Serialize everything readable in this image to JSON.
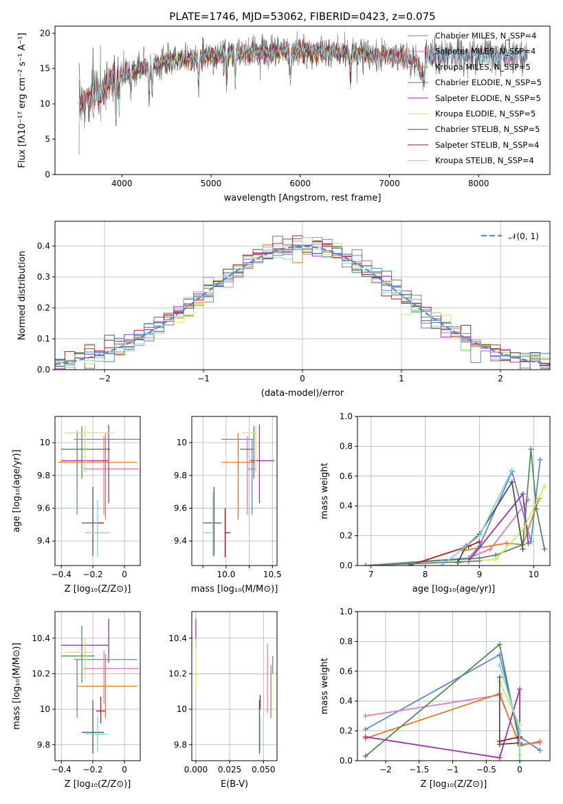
{
  "figure": {
    "title": "PLATE=1746, MJD=53062, FIBERID=0423, z=0.075"
  },
  "colors": {
    "chabrier_miles": "#7f7f7f",
    "salpeter_miles": "#e377c2",
    "kroupa_miles": "#e6791e",
    "chabrier_elodie": "#4f8a5a",
    "salpeter_elodie": "#9b30b0",
    "kroupa_elodie": "#cfe85a",
    "chabrier_stelib": "#505050",
    "salpeter_stelib": "#b0171f",
    "kroupa_stelib": "#7fd4e0",
    "blue": "#5b86d6",
    "gauss": "#5b86d6"
  },
  "chart_data": [
    {
      "id": "spectrum",
      "type": "line",
      "xlabel": "wavelength [Angstrom, rest frame]",
      "ylabel": "Flux [fλ10⁻¹⁷ erg cm⁻² s⁻¹ A⁻¹]",
      "xlim": [
        3250,
        8800
      ],
      "ylim": [
        0,
        21
      ],
      "xticks": [
        4000,
        5000,
        6000,
        7000,
        8000
      ],
      "yticks": [
        0,
        5,
        10,
        15,
        20
      ],
      "legend_position": "top-right",
      "continuum": [
        [
          3520,
          10
        ],
        [
          3700,
          11
        ],
        [
          3900,
          13.5
        ],
        [
          4100,
          14.5
        ],
        [
          4300,
          15.5
        ],
        [
          4600,
          16.3
        ],
        [
          5000,
          16.8
        ],
        [
          5500,
          17.3
        ],
        [
          6000,
          17.5
        ],
        [
          6500,
          17.2
        ],
        [
          7000,
          16.8
        ],
        [
          7300,
          16.3
        ],
        [
          7400,
          13
        ]
      ],
      "series": [
        {
          "name": "Chabrier MILES, N_SSP=4",
          "color_key": "chabrier_miles",
          "x_range": [
            3520,
            8550
          ]
        },
        {
          "name": "Salpeter MILES, N_SSP=4",
          "color_key": "salpeter_miles",
          "x_range": [
            3520,
            8550
          ]
        },
        {
          "name": "Kroupa MILES, N_SSP=5",
          "color_key": "kroupa_miles",
          "x_range": [
            3520,
            7410
          ]
        },
        {
          "name": "Chabrier ELODIE, N_SSP=5",
          "color_key": "chabrier_elodie",
          "x_range": [
            3900,
            6800
          ]
        },
        {
          "name": "Salpeter ELODIE, N_SSP=5",
          "color_key": "salpeter_elodie",
          "x_range": [
            3900,
            6800
          ]
        },
        {
          "name": "Kroupa ELODIE, N_SSP=5",
          "color_key": "kroupa_elodie",
          "x_range": [
            3900,
            6800
          ]
        },
        {
          "name": "Chabrier STELIB, N_SSP=5",
          "color_key": "chabrier_stelib",
          "x_range": [
            3520,
            8550
          ]
        },
        {
          "name": "Salpeter STELIB, N_SSP=4",
          "color_key": "salpeter_stelib",
          "x_range": [
            3520,
            7410
          ]
        },
        {
          "name": "Kroupa STELIB, N_SSP=4",
          "color_key": "kroupa_stelib",
          "x_range": [
            3520,
            8550
          ]
        }
      ]
    },
    {
      "id": "residuals",
      "type": "histogram",
      "xlabel": "(data-model)/error",
      "ylabel": "Normed distribution",
      "xlim": [
        -2.5,
        2.5
      ],
      "ylim": [
        0,
        0.48
      ],
      "xticks": [
        -2,
        -1,
        0,
        1,
        2
      ],
      "yticks": [
        0.0,
        0.1,
        0.2,
        0.3,
        0.4
      ],
      "grid": true,
      "legend_position": "top-right",
      "gauss_label": "𝒩(0, 1)",
      "bin_width": 0.1
    },
    {
      "id": "age_vs_Z",
      "type": "errorbar",
      "xlabel": "Z [log₁₀(Z/Z⊙)]",
      "ylabel": "age  [log₁₀(age/yr)]",
      "xlim": [
        -0.44,
        0.1
      ],
      "ylim": [
        9.25,
        10.16
      ],
      "xticks": [
        -0.4,
        -0.2,
        0.0
      ],
      "yticks": [
        9.4,
        9.6,
        9.8,
        10.0
      ],
      "grid": true,
      "points": [
        {
          "series": "chabrier_miles",
          "x": -0.3,
          "y": 10.02,
          "xerr": [
            0.0,
            0.0
          ],
          "yerr": [
            0.3,
            0.05
          ]
        },
        {
          "series": "blue",
          "x": -0.3,
          "y": 10.02,
          "xerr": [
            0.02,
            0.4
          ],
          "yerr": [
            0.46,
            0.0
          ]
        },
        {
          "series": "salpeter_miles",
          "x": -0.13,
          "y": 9.84,
          "xerr": [
            0.13,
            0.22
          ],
          "yerr": [
            0.28,
            0.2
          ]
        },
        {
          "series": "kroupa_miles",
          "x": -0.12,
          "y": 9.88,
          "xerr": [
            0.3,
            0.2
          ],
          "yerr": [
            0.35,
            0.18
          ]
        },
        {
          "series": "chabrier_elodie",
          "x": -0.27,
          "y": 9.96,
          "xerr": [
            0.13,
            0.18
          ],
          "yerr": [
            0.18,
            0.14
          ]
        },
        {
          "series": "salpeter_elodie",
          "x": -0.1,
          "y": 9.89,
          "xerr": [
            0.3,
            0.0
          ],
          "yerr": [
            0.26,
            0.22
          ]
        },
        {
          "series": "kroupa_elodie",
          "x": -0.25,
          "y": 10.06,
          "xerr": [
            0.13,
            0.18
          ],
          "yerr": [
            0.24,
            0.04
          ]
        },
        {
          "series": "chabrier_stelib",
          "x": -0.2,
          "y": 9.51,
          "xerr": [
            0.07,
            0.07
          ],
          "yerr": [
            0.2,
            0.22
          ]
        },
        {
          "series": "salpeter_stelib",
          "x": -0.15,
          "y": 9.51,
          "xerr": [
            0.0,
            0.0
          ],
          "yerr": [
            0.0,
            0.0
          ]
        },
        {
          "series": "kroupa_stelib",
          "x": -0.17,
          "y": 9.45,
          "xerr": [
            0.08,
            0.08
          ],
          "yerr": [
            0.15,
            0.2
          ]
        }
      ]
    },
    {
      "id": "age_vs_mass",
      "type": "errorbar",
      "xlabel": "mass [log₁₀(M/M⊙)]",
      "ylabel": "",
      "xlim": [
        9.63,
        10.55
      ],
      "ylim": [
        9.25,
        10.16
      ],
      "xticks": [
        9.75,
        10.0,
        10.25,
        10.5
      ],
      "xticklabels": [
        "",
        "10.0",
        "",
        "10.5"
      ],
      "yticks": [
        9.4,
        9.6,
        9.8,
        10.0
      ],
      "grid": true,
      "points": [
        {
          "series": "blue",
          "x": 10.28,
          "y": 10.02,
          "xerr": [
            0.33,
            0.02
          ],
          "yerr": [
            0.46,
            0.0
          ]
        },
        {
          "series": "salpeter_miles",
          "x": 10.23,
          "y": 9.84,
          "xerr": [
            0.0,
            0.1
          ],
          "yerr": [
            0.28,
            0.2
          ]
        },
        {
          "series": "kroupa_miles",
          "x": 10.13,
          "y": 9.88,
          "xerr": [
            0.18,
            0.18
          ],
          "yerr": [
            0.35,
            0.18
          ]
        },
        {
          "series": "chabrier_elodie",
          "x": 10.3,
          "y": 9.96,
          "xerr": [
            0.15,
            0.0
          ],
          "yerr": [
            0.18,
            0.14
          ]
        },
        {
          "series": "salpeter_elodie",
          "x": 10.36,
          "y": 9.89,
          "xerr": [
            0.1,
            0.16
          ],
          "yerr": [
            0.26,
            0.22
          ]
        },
        {
          "series": "kroupa_elodie",
          "x": 10.32,
          "y": 10.06,
          "xerr": [
            0.15,
            0.0
          ],
          "yerr": [
            0.24,
            0.04
          ]
        },
        {
          "series": "chabrier_stelib",
          "x": 9.87,
          "y": 9.51,
          "xerr": [
            0.12,
            0.08
          ],
          "yerr": [
            0.2,
            0.22
          ]
        },
        {
          "series": "salpeter_stelib",
          "x": 9.99,
          "y": 9.45,
          "xerr": [
            0.0,
            0.06
          ],
          "yerr": [
            0.15,
            0.15
          ]
        },
        {
          "series": "kroupa_stelib",
          "x": 9.86,
          "y": 9.45,
          "xerr": [
            0.1,
            0.0
          ],
          "yerr": [
            0.15,
            0.25
          ]
        }
      ]
    },
    {
      "id": "mw_vs_age",
      "type": "line",
      "xlabel": "age  [log₁₀(age/yr)]",
      "ylabel": "mass weight",
      "xlim": [
        6.75,
        10.3
      ],
      "ylim": [
        0,
        1.0
      ],
      "xticks": [
        7,
        8,
        9,
        10
      ],
      "yticks": [
        0.0,
        0.2,
        0.4,
        0.6,
        0.8,
        1.0
      ],
      "grid": true,
      "series": [
        {
          "color_key": "blue",
          "x": [
            6.9,
            8.8,
            9.0,
            9.6,
            9.95,
            10.12
          ],
          "y": [
            0.0,
            0.05,
            0.13,
            0.63,
            0.16,
            0.71
          ]
        },
        {
          "color_key": "salpeter_miles",
          "x": [
            8.8,
            9.2,
            9.9
          ],
          "y": [
            0.05,
            0.11,
            0.44
          ]
        },
        {
          "color_key": "kroupa_miles",
          "x": [
            8.7,
            9.5,
            9.8,
            10.1
          ],
          "y": [
            0.1,
            0.15,
            0.14,
            0.45
          ]
        },
        {
          "color_key": "chabrier_elodie",
          "x": [
            6.9,
            9.0,
            9.3,
            9.8,
            9.95,
            10.05,
            10.2
          ],
          "y": [
            0.0,
            0.05,
            0.07,
            0.14,
            0.78,
            0.38,
            0.11
          ]
        },
        {
          "color_key": "salpeter_elodie",
          "x": [
            8.6,
            8.8,
            9.8,
            9.9
          ],
          "y": [
            0.02,
            0.03,
            0.48,
            0.15
          ]
        },
        {
          "color_key": "kroupa_elodie",
          "x": [
            8.3,
            9.3,
            9.8,
            10.2
          ],
          "y": [
            0.02,
            0.04,
            0.24,
            0.53
          ]
        },
        {
          "color_key": "chabrier_stelib",
          "x": [
            8.6,
            8.75,
            9.0,
            9.6,
            9.8
          ],
          "y": [
            0.02,
            0.13,
            0.21,
            0.56,
            0.11
          ]
        },
        {
          "color_key": "salpeter_stelib",
          "x": [
            7.7,
            8.8,
            9.0
          ],
          "y": [
            0.0,
            0.13,
            0.16
          ]
        },
        {
          "color_key": "kroupa_stelib",
          "x": [
            8.3,
            9.0,
            9.6
          ],
          "y": [
            0.0,
            0.2,
            0.64
          ]
        },
        {
          "color_key": "chabrier_miles",
          "x": [
            6.9,
            9.0
          ],
          "y": [
            0.0,
            0.03
          ]
        }
      ]
    },
    {
      "id": "mass_vs_Z",
      "type": "errorbar",
      "xlabel": "Z [log₁₀(Z/Z⊙)]",
      "ylabel": "mass [log₁₀(M/M⊙)]",
      "xlim": [
        -0.44,
        0.1
      ],
      "ylim": [
        9.71,
        10.55
      ],
      "xticks": [
        -0.4,
        -0.2,
        0.0
      ],
      "yticks": [
        9.8,
        10.0,
        10.2,
        10.4
      ],
      "grid": true,
      "points": [
        {
          "series": "blue",
          "x": -0.3,
          "y": 10.28,
          "xerr": [
            0.02,
            0.38
          ],
          "yerr": [
            0.33,
            0.0
          ]
        },
        {
          "series": "salpeter_miles",
          "x": -0.13,
          "y": 10.23,
          "xerr": [
            0.13,
            0.22
          ],
          "yerr": [
            0.2,
            0.1
          ]
        },
        {
          "series": "kroupa_miles",
          "x": -0.12,
          "y": 10.13,
          "xerr": [
            0.18,
            0.2
          ],
          "yerr": [
            0.18,
            0.18
          ]
        },
        {
          "series": "chabrier_elodie",
          "x": -0.27,
          "y": 10.3,
          "xerr": [
            0.13,
            0.08
          ],
          "yerr": [
            0.15,
            0.17
          ]
        },
        {
          "series": "salpeter_elodie",
          "x": -0.1,
          "y": 10.36,
          "xerr": [
            0.3,
            0.0
          ],
          "yerr": [
            0.1,
            0.15
          ]
        },
        {
          "series": "kroupa_elodie",
          "x": -0.25,
          "y": 10.32,
          "xerr": [
            0.13,
            0.05
          ],
          "yerr": [
            0.15,
            0.08
          ]
        },
        {
          "series": "chabrier_stelib",
          "x": -0.2,
          "y": 9.87,
          "xerr": [
            0.07,
            0.07
          ],
          "yerr": [
            0.12,
            0.18
          ]
        },
        {
          "series": "salpeter_stelib",
          "x": -0.15,
          "y": 9.99,
          "xerr": [
            0.03,
            0.03
          ],
          "yerr": [
            0.07,
            0.08
          ]
        },
        {
          "series": "kroupa_stelib",
          "x": -0.17,
          "y": 9.86,
          "xerr": [
            0.08,
            0.06
          ],
          "yerr": [
            0.1,
            0.1
          ]
        }
      ]
    },
    {
      "id": "mass_vs_ebv",
      "type": "errorbar",
      "xlabel": "E(B-V)",
      "ylabel": "",
      "xlim": [
        -0.003,
        0.06
      ],
      "ylim": [
        9.71,
        10.55
      ],
      "xticks": [
        0.0,
        0.025,
        0.05
      ],
      "xticklabels": [
        "0.000",
        "0.025",
        "0.050"
      ],
      "yticks": [
        9.8,
        10.0,
        10.2,
        10.4
      ],
      "grid": true,
      "points": [
        {
          "series": "salpeter_elodie",
          "x": 0.0,
          "y": 10.4,
          "xerr": [
            0,
            0
          ],
          "yerr": [
            0.05,
            0.11
          ]
        },
        {
          "series": "kroupa_elodie",
          "x": 0.0,
          "y": 10.25,
          "xerr": [
            0,
            0
          ],
          "yerr": [
            0.15,
            0.15
          ]
        },
        {
          "series": "salpeter_miles",
          "x": 0.053,
          "y": 10.2,
          "xerr": [
            0,
            0
          ],
          "yerr": [
            0.22,
            0.17
          ]
        },
        {
          "series": "kroupa_miles",
          "x": 0.0555,
          "y": 10.13,
          "xerr": [
            0,
            0
          ],
          "yerr": [
            0.18,
            0.12
          ]
        },
        {
          "series": "blue",
          "x": 0.0568,
          "y": 10.2,
          "xerr": [
            0,
            0
          ],
          "yerr": [
            0.0,
            0.1
          ]
        },
        {
          "series": "salpeter_stelib",
          "x": 0.0475,
          "y": 10.0,
          "xerr": [
            0,
            0
          ],
          "yerr": [
            0.0,
            0.08
          ]
        },
        {
          "series": "chabrier_stelib",
          "x": 0.047,
          "y": 9.87,
          "xerr": [
            0,
            0
          ],
          "yerr": [
            0.12,
            0.18
          ]
        },
        {
          "series": "kroupa_stelib",
          "x": 0.0475,
          "y": 9.86,
          "xerr": [
            0,
            0
          ],
          "yerr": [
            0.1,
            0.1
          ]
        }
      ]
    },
    {
      "id": "mw_vs_Z",
      "type": "line",
      "xlabel": "Z [log₁₀(Z/Z⊙)]",
      "ylabel": "mass weight",
      "xlim": [
        -2.42,
        0.45
      ],
      "ylim": [
        0,
        1.0
      ],
      "xticks": [
        -2.0,
        -1.5,
        -1.0,
        -0.5,
        0.0
      ],
      "yticks": [
        0.0,
        0.2,
        0.4,
        0.6,
        0.8,
        1.0
      ],
      "grid": true,
      "series": [
        {
          "color_key": "blue",
          "x": [
            -2.3,
            -0.3,
            0.0,
            0.3
          ],
          "y": [
            0.21,
            0.71,
            0.16,
            0.07
          ]
        },
        {
          "color_key": "salpeter_miles",
          "x": [
            -2.3,
            -0.3,
            0.0,
            0.3
          ],
          "y": [
            0.3,
            0.44,
            0.11,
            0.12
          ]
        },
        {
          "color_key": "kroupa_miles",
          "x": [
            -2.3,
            -0.3,
            0.0,
            0.3
          ],
          "y": [
            0.15,
            0.45,
            0.1,
            0.13
          ]
        },
        {
          "color_key": "chabrier_elodie",
          "x": [
            -2.3,
            -0.3,
            0.0,
            0.0
          ],
          "y": [
            0.03,
            0.78,
            0.11,
            0.0
          ]
        },
        {
          "color_key": "salpeter_elodie",
          "x": [
            -2.3,
            -0.3,
            0.0,
            0.0
          ],
          "y": [
            0.16,
            0.02,
            0.48,
            0.15
          ]
        },
        {
          "color_key": "kroupa_elodie",
          "x": [
            -0.3,
            0.0,
            0.0
          ],
          "y": [
            0.53,
            0.24,
            0.04
          ]
        },
        {
          "color_key": "chabrier_stelib",
          "x": [
            -0.3,
            -0.3,
            0.0,
            0.0
          ],
          "y": [
            0.56,
            0.11,
            0.12,
            0.2
          ]
        },
        {
          "color_key": "salpeter_stelib",
          "x": [
            -0.3,
            0.0
          ],
          "y": [
            0.13,
            0.16
          ]
        },
        {
          "color_key": "kroupa_stelib",
          "x": [
            -0.3,
            0.0,
            0.0
          ],
          "y": [
            0.64,
            0.2,
            0.0
          ]
        }
      ]
    }
  ]
}
